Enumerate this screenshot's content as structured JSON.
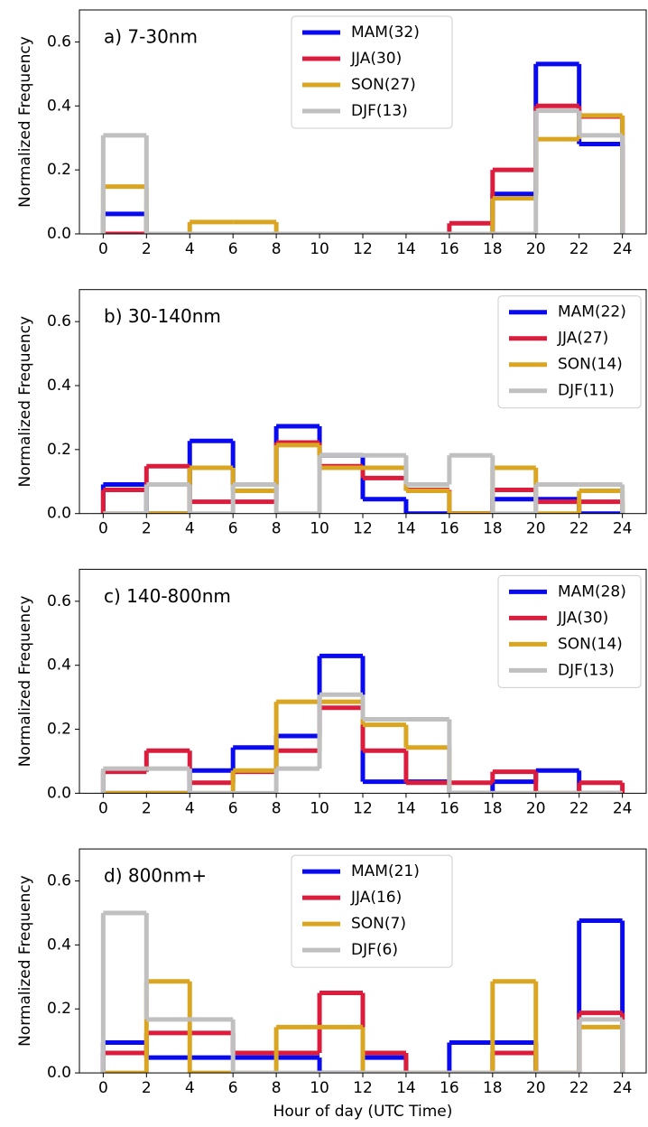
{
  "chart_data": [
    {
      "type": "histogram",
      "annotation": "a) 7-30nm",
      "ylabel": "Normalized Frequency",
      "legend": "upper center",
      "bins": [
        0,
        2,
        4,
        6,
        8,
        10,
        12,
        14,
        16,
        18,
        20,
        22,
        24
      ],
      "xlim": [
        -1.1,
        25.1
      ],
      "xticks": [
        0,
        2,
        4,
        6,
        8,
        10,
        12,
        14,
        16,
        18,
        20,
        22,
        24
      ],
      "ylim": [
        0,
        0.7
      ],
      "yticks": [
        {
          "value": 0,
          "label": "0.0"
        },
        {
          "value": 0.2,
          "label": "0.2"
        },
        {
          "value": 0.4,
          "label": "0.4"
        },
        {
          "value": 0.6,
          "label": "0.6"
        }
      ],
      "series": [
        {
          "name": "MAM(32)",
          "color": "#0a0af0",
          "values": [
            0.0625,
            0,
            0,
            0,
            0,
            0,
            0,
            0,
            0,
            0.125,
            0.531,
            0.281
          ]
        },
        {
          "name": "JJA(30)",
          "color": "#dc1c3c",
          "values": [
            0,
            0,
            0,
            0,
            0,
            0,
            0,
            0,
            0.033,
            0.2,
            0.4,
            0.367
          ]
        },
        {
          "name": "SON(27)",
          "color": "#daa520",
          "values": [
            0.148,
            0,
            0.037,
            0.037,
            0,
            0,
            0,
            0,
            0,
            0.111,
            0.296,
            0.37
          ]
        },
        {
          "name": "DJF(13)",
          "color": "#c0c0c0",
          "values": [
            0.308,
            0,
            0,
            0,
            0,
            0,
            0,
            0,
            0,
            0,
            0.385,
            0.308
          ]
        }
      ]
    },
    {
      "type": "histogram",
      "annotation": "b) 30-140nm",
      "ylabel": "Normalized Frequency",
      "legend": "upper right",
      "bins": [
        0,
        2,
        4,
        6,
        8,
        10,
        12,
        14,
        16,
        18,
        20,
        22,
        24
      ],
      "xlim": [
        -1.1,
        25.1
      ],
      "xticks": [
        0,
        2,
        4,
        6,
        8,
        10,
        12,
        14,
        16,
        18,
        20,
        22,
        24
      ],
      "ylim": [
        0,
        0.7
      ],
      "yticks": [
        {
          "value": 0,
          "label": "0.0"
        },
        {
          "value": 0.2,
          "label": "0.2"
        },
        {
          "value": 0.4,
          "label": "0.4"
        },
        {
          "value": 0.6,
          "label": "0.6"
        }
      ],
      "series": [
        {
          "name": "MAM(22)",
          "color": "#0a0af0",
          "values": [
            0.091,
            0,
            0.227,
            0.091,
            0.273,
            0.182,
            0.045,
            0,
            0,
            0.045,
            0.045,
            0
          ]
        },
        {
          "name": "JJA(27)",
          "color": "#dc1c3c",
          "values": [
            0.074,
            0.148,
            0.037,
            0.037,
            0.222,
            0.148,
            0.111,
            0.074,
            0,
            0.074,
            0.037,
            0.037
          ]
        },
        {
          "name": "SON(14)",
          "color": "#daa520",
          "values": [
            0,
            0,
            0.143,
            0.071,
            0.214,
            0.143,
            0.143,
            0.071,
            0,
            0.143,
            0,
            0.071
          ]
        },
        {
          "name": "DJF(11)",
          "color": "#c0c0c0",
          "values": [
            0,
            0.091,
            0,
            0.091,
            0,
            0.182,
            0.182,
            0.091,
            0.182,
            0,
            0.091,
            0.091
          ]
        }
      ]
    },
    {
      "type": "histogram",
      "annotation": "c) 140-800nm",
      "ylabel": "Normalized Frequency",
      "legend": "upper right",
      "bins": [
        0,
        2,
        4,
        6,
        8,
        10,
        12,
        14,
        16,
        18,
        20,
        22,
        24
      ],
      "xlim": [
        -1.1,
        25.1
      ],
      "xticks": [
        0,
        2,
        4,
        6,
        8,
        10,
        12,
        14,
        16,
        18,
        20,
        22,
        24
      ],
      "ylim": [
        0,
        0.7
      ],
      "yticks": [
        {
          "value": 0,
          "label": "0.0"
        },
        {
          "value": 0.2,
          "label": "0.2"
        },
        {
          "value": 0.4,
          "label": "0.4"
        },
        {
          "value": 0.6,
          "label": "0.6"
        }
      ],
      "series": [
        {
          "name": "MAM(28)",
          "color": "#0a0af0",
          "values": [
            0,
            0,
            0.071,
            0.143,
            0.179,
            0.429,
            0.036,
            0.036,
            0,
            0.036,
            0.071,
            0
          ]
        },
        {
          "name": "JJA(30)",
          "color": "#dc1c3c",
          "values": [
            0.067,
            0.133,
            0.033,
            0.067,
            0.133,
            0.267,
            0.133,
            0.033,
            0.033,
            0.067,
            0,
            0.033
          ]
        },
        {
          "name": "SON(14)",
          "color": "#daa520",
          "values": [
            0,
            0,
            0,
            0.071,
            0.286,
            0.286,
            0.214,
            0.143,
            0,
            0,
            0,
            0
          ]
        },
        {
          "name": "DJF(13)",
          "color": "#c0c0c0",
          "values": [
            0.077,
            0.077,
            0,
            0,
            0.077,
            0.308,
            0.231,
            0.231,
            0,
            0,
            0,
            0
          ]
        }
      ]
    },
    {
      "type": "histogram",
      "annotation": "d) 800nm+",
      "ylabel": "Normalized Frequency",
      "xlabel": "Hour of day (UTC Time)",
      "legend": "upper center",
      "bins": [
        0,
        2,
        4,
        6,
        8,
        10,
        12,
        14,
        16,
        18,
        20,
        22,
        24
      ],
      "xlim": [
        -1.1,
        25.1
      ],
      "xticks": [
        0,
        2,
        4,
        6,
        8,
        10,
        12,
        14,
        16,
        18,
        20,
        22,
        24
      ],
      "ylim": [
        0,
        0.7
      ],
      "yticks": [
        {
          "value": 0,
          "label": "0.0"
        },
        {
          "value": 0.2,
          "label": "0.2"
        },
        {
          "value": 0.4,
          "label": "0.4"
        },
        {
          "value": 0.6,
          "label": "0.6"
        }
      ],
      "series": [
        {
          "name": "MAM(21)",
          "color": "#0a0af0",
          "values": [
            0.095,
            0.048,
            0.048,
            0.048,
            0.048,
            0,
            0.048,
            0,
            0.095,
            0.095,
            0,
            0.476
          ]
        },
        {
          "name": "JJA(16)",
          "color": "#dc1c3c",
          "values": [
            0.0625,
            0.125,
            0.125,
            0.0625,
            0.0625,
            0.25,
            0.0625,
            0,
            0,
            0.0625,
            0,
            0.1875
          ]
        },
        {
          "name": "SON(7)",
          "color": "#daa520",
          "values": [
            0,
            0.286,
            0,
            0,
            0.143,
            0.143,
            0,
            0,
            0,
            0.286,
            0,
            0.143
          ]
        },
        {
          "name": "DJF(6)",
          "color": "#c0c0c0",
          "values": [
            0.5,
            0.167,
            0.167,
            0,
            0,
            0,
            0,
            0,
            0,
            0,
            0,
            0.167
          ]
        }
      ]
    }
  ]
}
